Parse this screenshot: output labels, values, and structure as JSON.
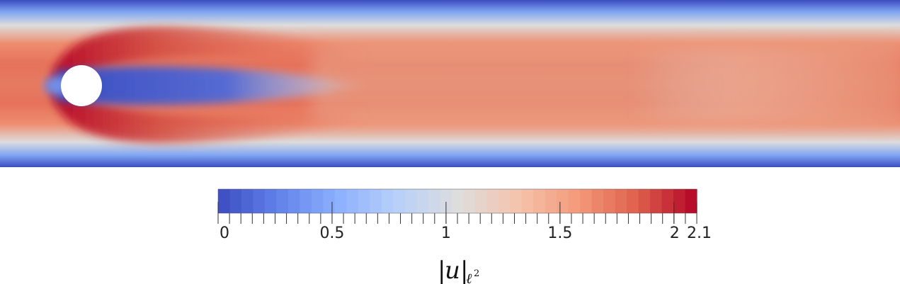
{
  "figure": {
    "colors": {
      "low": "#3b4cc0",
      "mid": "#dddddd",
      "high": "#b40426",
      "obstacle": "#ffffff"
    }
  },
  "colorbar": {
    "colormap": "coolwarm",
    "range": [
      0,
      2.1
    ],
    "tick_values": [
      0,
      0.5,
      1,
      1.5,
      2,
      2.1
    ],
    "tick_labels": [
      "0",
      "0.5",
      "1",
      "1.5",
      "2",
      "2.1"
    ],
    "minor_tick_step": 0.05,
    "levels": 41
  },
  "legend_title": {
    "bar_left": "|",
    "symbol": "u",
    "bar_right": "|",
    "subscript": "ℓ",
    "superscript": "2"
  }
}
